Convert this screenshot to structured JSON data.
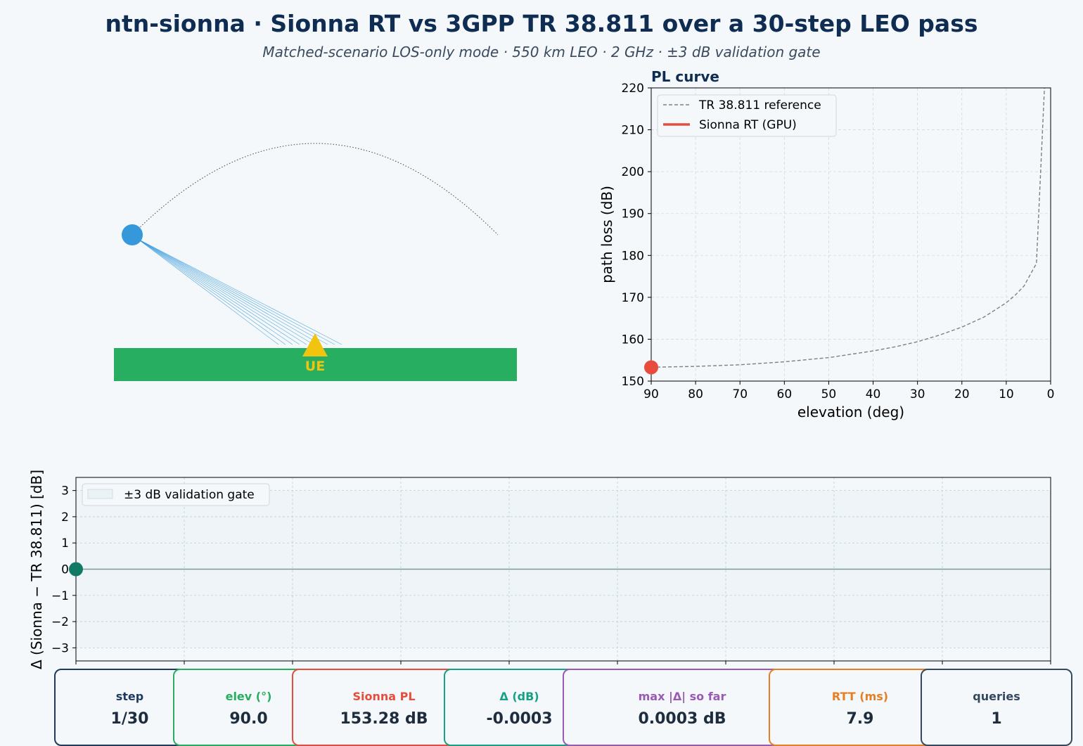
{
  "header": {
    "title": "ntn-sionna  ·  Sionna RT vs 3GPP TR 38.811 over a 30-step LEO pass",
    "subtitle": "Matched-scenario LOS-only mode  ·  550 km LEO  ·  2 GHz  ·  ±3 dB validation gate"
  },
  "scene": {
    "ue_label": "UE",
    "colors": {
      "ground": "#27ae60",
      "ue": "#f1c40f",
      "satellite": "#3498db",
      "rays": "#3498db"
    }
  },
  "chart_data": [
    {
      "type": "line",
      "title": "PL curve",
      "xlabel": "elevation (deg)",
      "ylabel": "path loss (dB)",
      "xlim": [
        90,
        0
      ],
      "ylim": [
        150,
        220
      ],
      "xticks": [
        "90",
        "80",
        "70",
        "60",
        "50",
        "40",
        "30",
        "20",
        "10",
        "0"
      ],
      "yticks": [
        "150",
        "160",
        "170",
        "180",
        "190",
        "200",
        "210",
        "220"
      ],
      "grid": true,
      "legend_position": "top-left",
      "series": [
        {
          "name": "TR 38.811 reference",
          "color": "#808080",
          "style": "dashed",
          "x": [
            90,
            80,
            70,
            60,
            50,
            40,
            35,
            30,
            25,
            20,
            15,
            10,
            8,
            6,
            3.2,
            1.4
          ],
          "y": [
            153.3,
            153.5,
            153.9,
            154.6,
            155.6,
            157.2,
            158.2,
            159.4,
            161.0,
            162.9,
            165.3,
            168.7,
            170.5,
            172.7,
            178.1,
            220
          ]
        },
        {
          "name": "Sionna RT (GPU)",
          "color": "#e74c3c",
          "style": "solid",
          "x": [
            90
          ],
          "y": [
            153.28
          ]
        }
      ]
    },
    {
      "type": "line",
      "title": "",
      "xlabel": "",
      "ylabel": "Δ (Sionna − TR 38.811)  [dB]",
      "xlim": [
        1,
        10
      ],
      "ylim": [
        -3.5,
        3.5
      ],
      "yticks": [
        "3",
        "2",
        "1",
        "0",
        "−1",
        "−2",
        "−3"
      ],
      "grid": true,
      "legend_position": "top-left",
      "gate": {
        "name": "±3 dB validation gate",
        "low": -3,
        "high": 3
      },
      "series": [
        {
          "name": "",
          "color": "#117a65",
          "x": [
            1
          ],
          "y": [
            -0.0003
          ]
        }
      ]
    }
  ],
  "cards": [
    {
      "label": "step",
      "value": "1/30",
      "color": "#1f3a5f"
    },
    {
      "label": "elev (°)",
      "value": "90.0",
      "color": "#27ae60"
    },
    {
      "label": "Sionna PL",
      "value": "153.28 dB",
      "color": "#e74c3c"
    },
    {
      "label": "Δ (dB)",
      "value": "-0.0003",
      "color": "#16a085"
    },
    {
      "label": "max |Δ| so far",
      "value": "0.0003 dB",
      "color": "#9b59b6"
    },
    {
      "label": "RTT (ms)",
      "value": "7.9",
      "color": "#e67e22"
    },
    {
      "label": "queries",
      "value": "1",
      "color": "#34495e"
    }
  ]
}
